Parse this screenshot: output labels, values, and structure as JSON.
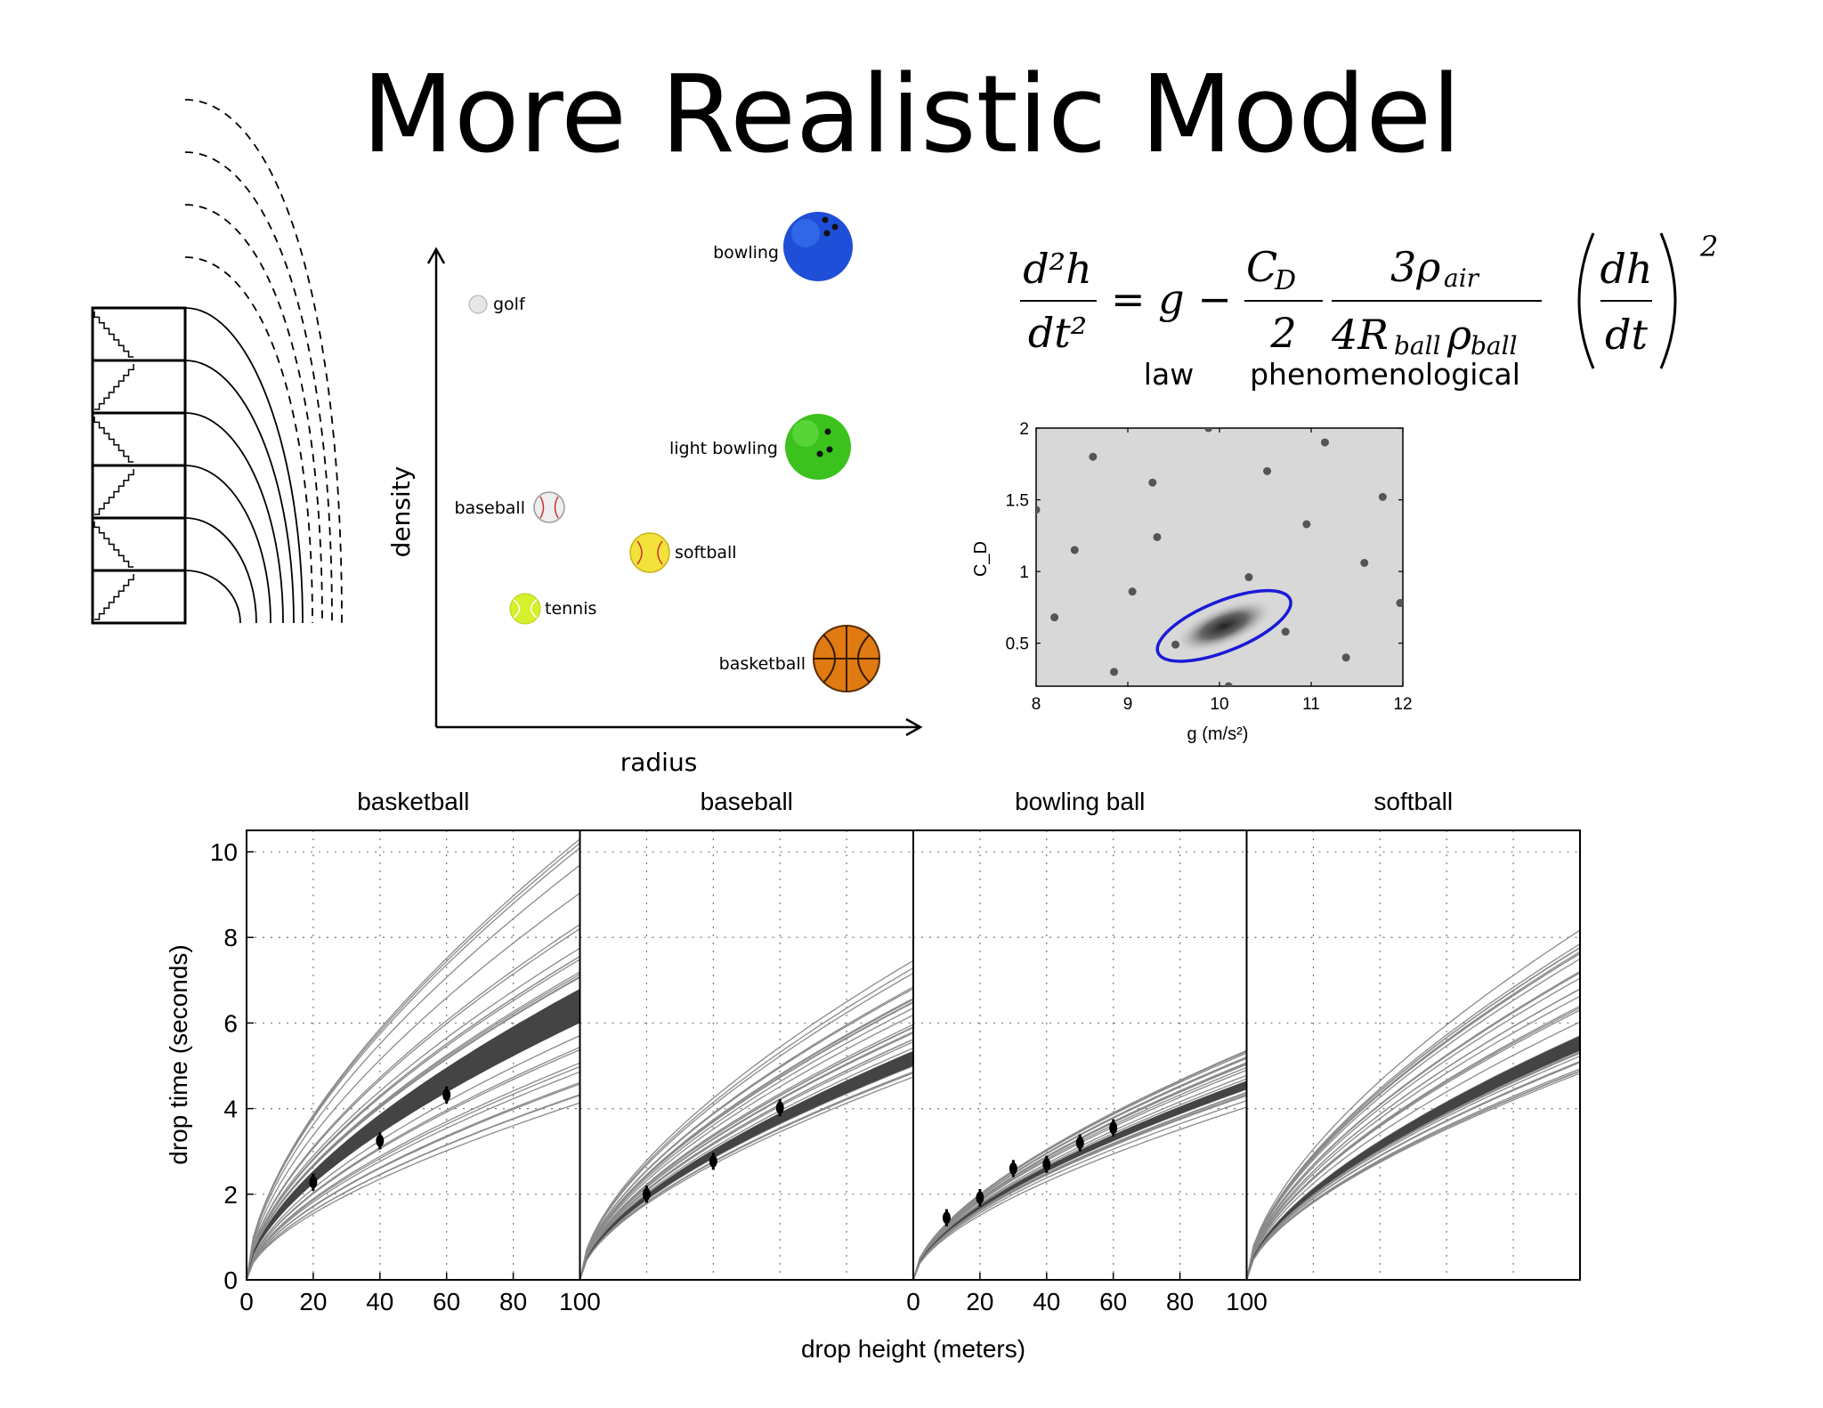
{
  "slide": {
    "title": "More Realistic Model"
  },
  "equation": {
    "lhs_num": "d²h",
    "lhs_den": "dt²",
    "equals_g_minus": "= g −",
    "cd_num": "C",
    "cd_sub": "D",
    "cd_den": "2",
    "rho_num": "3ρ",
    "rho_num_sub": "air",
    "rho_den_a": "4R",
    "rho_den_sub1": "ball",
    "rho_den_b": "ρ",
    "rho_den_sub2": "ball",
    "dh": "dh",
    "dt": "dt",
    "power": "2",
    "label_law": "law",
    "label_phen": "phenomenological"
  },
  "ball_chart": {
    "xlabel": "radius",
    "ylabel": "density",
    "balls": [
      {
        "name": "golf",
        "color": "#e6e6e6"
      },
      {
        "name": "bowling",
        "color": "#1f4fd8"
      },
      {
        "name": "light bowling",
        "color": "#3bc21d"
      },
      {
        "name": "baseball",
        "color": "#eeeeee"
      },
      {
        "name": "softball",
        "color": "#f2e23a"
      },
      {
        "name": "tennis",
        "color": "#d7f02c"
      },
      {
        "name": "basketball",
        "color": "#e07a12"
      }
    ]
  },
  "chart_data": [
    {
      "type": "scatter",
      "xlabel": "g (m/s²)",
      "ylabel": "C_D",
      "xlim": [
        8,
        12
      ],
      "ylim": [
        0.2,
        2
      ],
      "x_ticks": [
        "8",
        "9",
        "10",
        "11",
        "12"
      ],
      "y_ticks": [
        "0.5",
        "1",
        "1.5",
        "2"
      ],
      "ellipse": {
        "center": [
          10.05,
          0.62
        ],
        "color": "#1a1ad6"
      },
      "points": [
        [
          9.88,
          2.0
        ],
        [
          8.62,
          1.8
        ],
        [
          9.27,
          1.62
        ],
        [
          10.52,
          1.7
        ],
        [
          11.15,
          1.9
        ],
        [
          8.0,
          1.43
        ],
        [
          11.78,
          1.52
        ],
        [
          10.95,
          1.33
        ],
        [
          9.32,
          1.24
        ],
        [
          8.42,
          1.15
        ],
        [
          11.58,
          1.06
        ],
        [
          10.32,
          0.96
        ],
        [
          9.05,
          0.86
        ],
        [
          11.97,
          0.78
        ],
        [
          8.2,
          0.68
        ],
        [
          10.72,
          0.58
        ],
        [
          9.52,
          0.49
        ],
        [
          11.38,
          0.4
        ],
        [
          8.85,
          0.3
        ],
        [
          10.1,
          0.2
        ]
      ]
    },
    {
      "type": "line",
      "panels": [
        "basketball",
        "baseball",
        "bowling ball",
        "softball"
      ],
      "xlabel": "drop height (meters)",
      "ylabel": "drop time (seconds)",
      "xlim": [
        0,
        100
      ],
      "ylim": [
        0,
        10.5
      ],
      "x_ticks": [
        "0",
        "20",
        "40",
        "60",
        "80",
        "100"
      ],
      "y_ticks": [
        "0",
        "2",
        "4",
        "6",
        "8",
        "10"
      ],
      "band_at_100": [
        {
          "panel": "basketball",
          "low": 6.0,
          "high": 6.8
        },
        {
          "panel": "baseball",
          "low": 5.0,
          "high": 5.35
        },
        {
          "panel": "bowling ball",
          "low": 4.45,
          "high": 4.65
        },
        {
          "panel": "softball",
          "low": 5.35,
          "high": 5.7
        }
      ],
      "observations": [
        {
          "panel": "basketball",
          "x": [
            20,
            40,
            60
          ],
          "y": [
            2.28,
            3.25,
            4.32
          ]
        },
        {
          "panel": "baseball",
          "x": [
            20,
            40,
            60
          ],
          "y": [
            2.0,
            2.77,
            4.02
          ]
        },
        {
          "panel": "bowling ball",
          "x": [
            10,
            20,
            30,
            40,
            50,
            60
          ],
          "y": [
            1.45,
            1.92,
            2.6,
            2.7,
            3.2,
            3.55
          ]
        },
        {
          "panel": "softball",
          "x": [],
          "y": []
        }
      ]
    }
  ]
}
